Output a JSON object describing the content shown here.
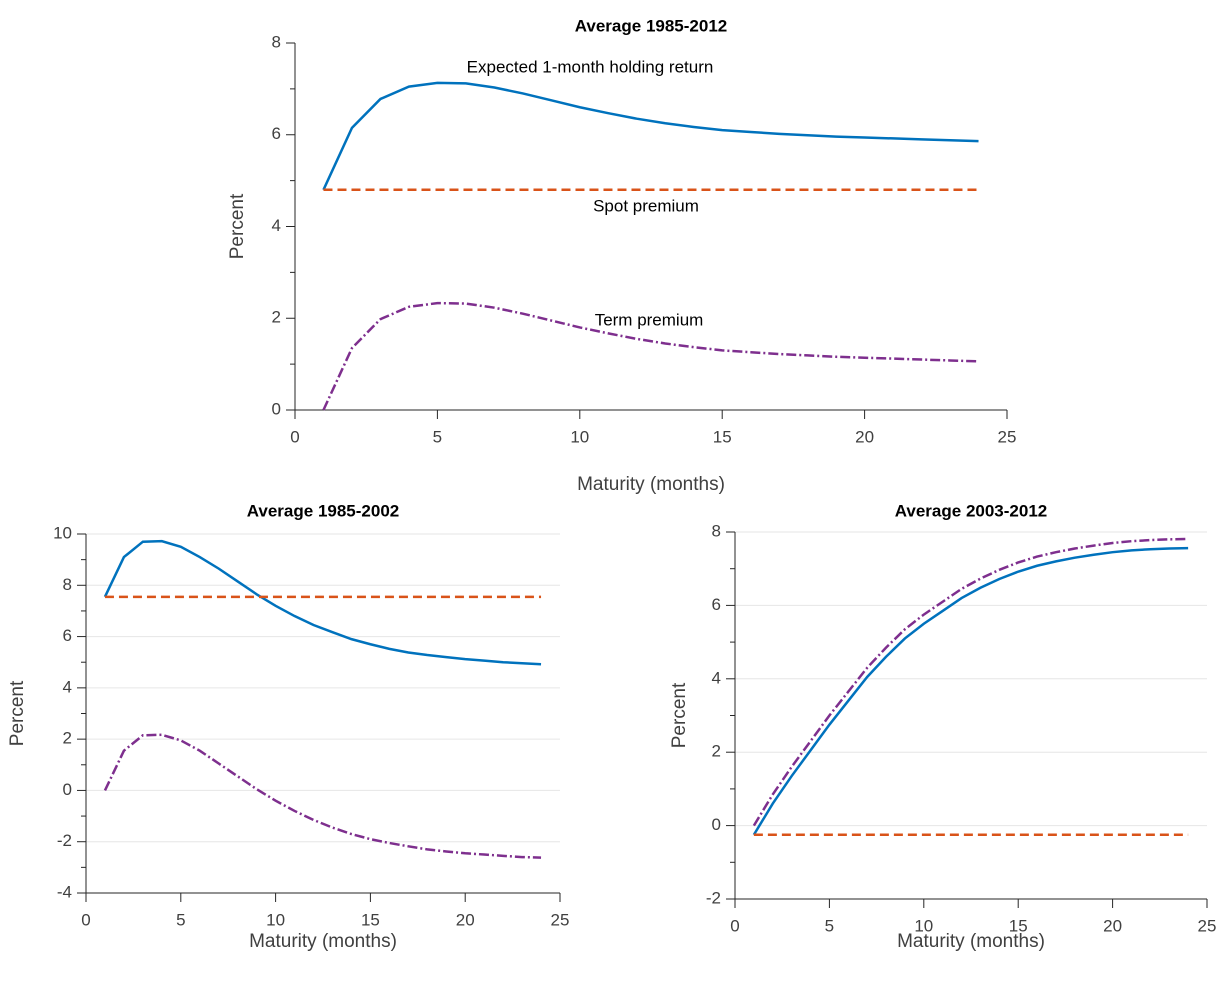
{
  "chart_data": [
    {
      "type": "line",
      "title": "Average 1985-2012",
      "xlabel": "Maturity (months)",
      "ylabel": "Percent",
      "x": [
        1,
        2,
        3,
        4,
        5,
        6,
        7,
        8,
        9,
        10,
        11,
        12,
        13,
        14,
        15,
        16,
        17,
        18,
        19,
        20,
        21,
        22,
        23,
        24
      ],
      "series": [
        {
          "name": "Expected 1-month holding return",
          "color": "#0072bd",
          "line_style": "solid",
          "values": [
            4.8,
            6.15,
            6.78,
            7.05,
            7.13,
            7.12,
            7.03,
            6.9,
            6.75,
            6.6,
            6.47,
            6.35,
            6.25,
            6.17,
            6.1,
            6.06,
            6.02,
            5.99,
            5.96,
            5.94,
            5.92,
            5.9,
            5.88,
            5.86
          ]
        },
        {
          "name": "Spot premium",
          "color": "#d95319",
          "line_style": "dashed",
          "values": [
            4.8,
            4.8,
            4.8,
            4.8,
            4.8,
            4.8,
            4.8,
            4.8,
            4.8,
            4.8,
            4.8,
            4.8,
            4.8,
            4.8,
            4.8,
            4.8,
            4.8,
            4.8,
            4.8,
            4.8,
            4.8,
            4.8,
            4.8,
            4.8
          ]
        },
        {
          "name": "Term premium",
          "color": "#7e2f8e",
          "line_style": "dashdot",
          "values": [
            0,
            1.35,
            1.98,
            2.25,
            2.33,
            2.32,
            2.23,
            2.1,
            1.95,
            1.8,
            1.67,
            1.55,
            1.45,
            1.37,
            1.3,
            1.26,
            1.22,
            1.19,
            1.16,
            1.14,
            1.12,
            1.1,
            1.08,
            1.06
          ]
        }
      ],
      "xlim": [
        0,
        25
      ],
      "xticks": [
        0,
        5,
        10,
        15,
        20,
        25
      ],
      "ylim": [
        0,
        8
      ],
      "yticks": [
        0,
        2,
        4,
        6,
        8
      ],
      "grid": false
    },
    {
      "type": "line",
      "title": "Average 1985-2002",
      "xlabel": "Maturity (months)",
      "ylabel": "Percent",
      "x": [
        1,
        2,
        3,
        4,
        5,
        6,
        7,
        8,
        9,
        10,
        11,
        12,
        13,
        14,
        15,
        16,
        17,
        18,
        19,
        20,
        21,
        22,
        23,
        24
      ],
      "series": [
        {
          "color": "#0072bd",
          "line_style": "solid",
          "values": [
            7.55,
            9.1,
            9.7,
            9.72,
            9.5,
            9.1,
            8.65,
            8.15,
            7.65,
            7.2,
            6.8,
            6.45,
            6.17,
            5.9,
            5.7,
            5.52,
            5.38,
            5.28,
            5.2,
            5.12,
            5.06,
            5.0,
            4.96,
            4.92
          ]
        },
        {
          "color": "#d95319",
          "line_style": "dashed",
          "values": [
            7.55,
            7.55,
            7.55,
            7.55,
            7.55,
            7.55,
            7.55,
            7.55,
            7.55,
            7.55,
            7.55,
            7.55,
            7.55,
            7.55,
            7.55,
            7.55,
            7.55,
            7.55,
            7.55,
            7.55,
            7.55,
            7.55,
            7.55,
            7.55
          ]
        },
        {
          "color": "#7e2f8e",
          "line_style": "dashdot",
          "values": [
            0,
            1.55,
            2.15,
            2.17,
            1.95,
            1.55,
            1.05,
            0.55,
            0.05,
            -0.4,
            -0.8,
            -1.15,
            -1.45,
            -1.7,
            -1.9,
            -2.05,
            -2.18,
            -2.3,
            -2.38,
            -2.45,
            -2.5,
            -2.55,
            -2.6,
            -2.62
          ]
        }
      ],
      "xlim": [
        0,
        25
      ],
      "xticks": [
        0,
        5,
        10,
        15,
        20,
        25
      ],
      "ylim": [
        -4,
        10
      ],
      "yticks": [
        -4,
        -2,
        0,
        2,
        4,
        6,
        8,
        10
      ],
      "grid": true
    },
    {
      "type": "line",
      "title": "Average 2003-2012",
      "xlabel": "Maturity (months)",
      "ylabel": "Percent",
      "x": [
        1,
        2,
        3,
        4,
        5,
        6,
        7,
        8,
        9,
        10,
        11,
        12,
        13,
        14,
        15,
        16,
        17,
        18,
        19,
        20,
        21,
        22,
        23,
        24
      ],
      "series": [
        {
          "color": "#0072bd",
          "line_style": "solid",
          "values": [
            -0.25,
            0.6,
            1.35,
            2.05,
            2.75,
            3.4,
            4.05,
            4.6,
            5.1,
            5.5,
            5.85,
            6.2,
            6.48,
            6.72,
            6.92,
            7.08,
            7.2,
            7.3,
            7.38,
            7.45,
            7.5,
            7.53,
            7.55,
            7.56
          ]
        },
        {
          "color": "#d95319",
          "line_style": "dashed",
          "values": [
            -0.25,
            -0.25,
            -0.25,
            -0.25,
            -0.25,
            -0.25,
            -0.25,
            -0.25,
            -0.25,
            -0.25,
            -0.25,
            -0.25,
            -0.25,
            -0.25,
            -0.25,
            -0.25,
            -0.25,
            -0.25,
            -0.25,
            -0.25,
            -0.25,
            -0.25,
            -0.25,
            -0.25
          ]
        },
        {
          "color": "#7e2f8e",
          "line_style": "dashdot",
          "values": [
            0,
            0.85,
            1.6,
            2.3,
            3.0,
            3.65,
            4.3,
            4.85,
            5.35,
            5.75,
            6.1,
            6.45,
            6.73,
            6.97,
            7.17,
            7.33,
            7.45,
            7.55,
            7.63,
            7.7,
            7.75,
            7.78,
            7.8,
            7.81
          ]
        }
      ],
      "xlim": [
        0,
        25
      ],
      "xticks": [
        0,
        5,
        10,
        15,
        20,
        25
      ],
      "ylim": [
        -2,
        8
      ],
      "yticks": [
        -2,
        0,
        2,
        4,
        6,
        8
      ],
      "grid": true
    }
  ]
}
